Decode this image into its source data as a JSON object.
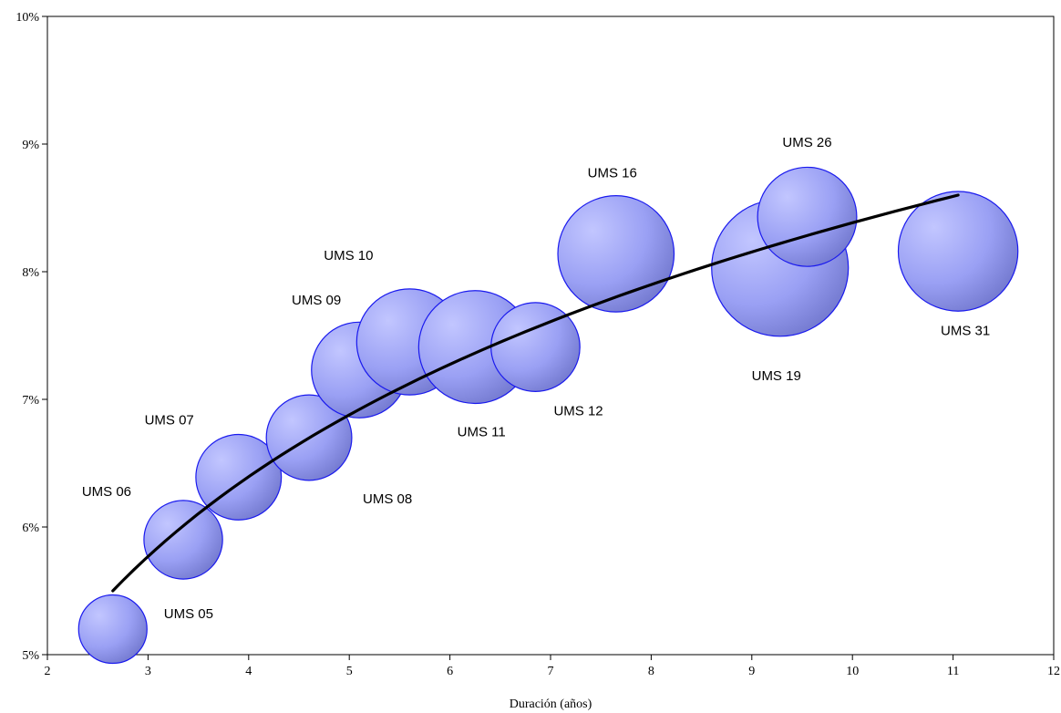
{
  "chart_data": {
    "type": "scatter",
    "subtype": "bubble",
    "title": "",
    "xlabel": "Duración (años)",
    "ylabel": "",
    "xlim": [
      2,
      12
    ],
    "ylim": [
      0.05,
      0.1
    ],
    "x_ticks": [
      2,
      3,
      4,
      5,
      6,
      7,
      8,
      9,
      10,
      11,
      12
    ],
    "y_ticks": [
      0.05,
      0.06,
      0.07,
      0.08,
      0.09,
      0.1
    ],
    "y_tick_labels": [
      "5%",
      "6%",
      "7%",
      "8%",
      "9%",
      "10%"
    ],
    "grid": false,
    "bubble_color": "#9aa0f4",
    "bubble_edge_color": "#1a1aee",
    "points": [
      {
        "label": "UMS 05",
        "x": 2.65,
        "y": 0.052,
        "size": 1.0
      },
      {
        "label": "UMS 06",
        "x": 3.35,
        "y": 0.059,
        "size": 1.15
      },
      {
        "label": "UMS 07",
        "x": 3.9,
        "y": 0.0639,
        "size": 1.25
      },
      {
        "label": "UMS 08",
        "x": 4.6,
        "y": 0.067,
        "size": 1.25
      },
      {
        "label": "UMS 09",
        "x": 5.1,
        "y": 0.0723,
        "size": 1.4
      },
      {
        "label": "UMS 10",
        "x": 5.6,
        "y": 0.0745,
        "size": 1.55
      },
      {
        "label": "UMS 11",
        "x": 6.25,
        "y": 0.0741,
        "size": 1.65
      },
      {
        "label": "UMS 12",
        "x": 6.85,
        "y": 0.0741,
        "size": 1.3
      },
      {
        "label": "UMS 16",
        "x": 7.65,
        "y": 0.0814,
        "size": 1.7
      },
      {
        "label": "UMS 19",
        "x": 9.28,
        "y": 0.0803,
        "size": 2.0
      },
      {
        "label": "UMS 26",
        "x": 9.55,
        "y": 0.0843,
        "size": 1.45
      },
      {
        "label": "UMS 31",
        "x": 11.05,
        "y": 0.0816,
        "size": 1.75
      }
    ],
    "trendline": {
      "type": "logarithmic",
      "x_start": 2.65,
      "x_end": 11.05,
      "y_start": 0.055,
      "y_end": 0.086,
      "color": "#000000"
    }
  }
}
